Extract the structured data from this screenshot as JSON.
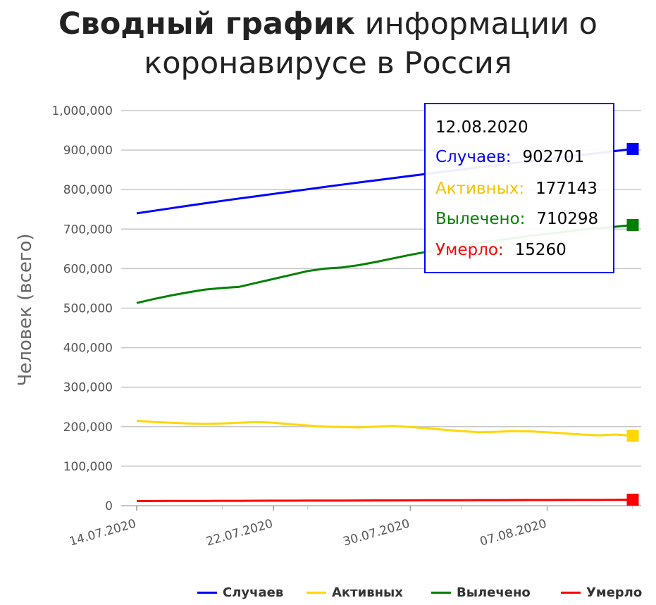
{
  "title": {
    "bold": "Сводный график",
    "rest": "информации о коронавирусе в Россия"
  },
  "colors": {
    "cases": "#0000ff",
    "active": "#ffd700",
    "recovered": "#008000",
    "deaths": "#ff0000",
    "grid": "#c8c8c8"
  },
  "tooltip": {
    "date": "12.08.2020",
    "rows": [
      {
        "label": "Случаев:",
        "value": "902701",
        "color": "#0000ff"
      },
      {
        "label": "Активных:",
        "value": "177143",
        "color": "#f2c200"
      },
      {
        "label": "Вылечено:",
        "value": "710298",
        "color": "#008000"
      },
      {
        "label": "Умерло:",
        "value": "15260",
        "color": "#ff0000"
      }
    ]
  },
  "legend": [
    {
      "label": "Случаев",
      "color": "#0000ff"
    },
    {
      "label": "Активных",
      "color": "#ffd700"
    },
    {
      "label": "Вылечено",
      "color": "#008000"
    },
    {
      "label": "Умерло",
      "color": "#ff0000"
    }
  ],
  "chart_data": {
    "type": "line",
    "title": "Сводный график информации о коронавирусе в Россия",
    "xlabel": "",
    "ylabel": "Человек (всего)",
    "ylim": [
      0,
      1000000
    ],
    "y_ticks": [
      0,
      100000,
      200000,
      300000,
      400000,
      500000,
      600000,
      700000,
      800000,
      900000,
      1000000
    ],
    "y_tick_labels": [
      "0",
      "100,000",
      "200,000",
      "300,000",
      "400,000",
      "500,000",
      "600,000",
      "700,000",
      "800,000",
      "900,000",
      "1,000,000"
    ],
    "x_ticks": [
      "14.07.2020",
      "22.07.2020",
      "30.07.2020",
      "07.08.2020"
    ],
    "x": [
      "14.07.2020",
      "15.07.2020",
      "16.07.2020",
      "17.07.2020",
      "18.07.2020",
      "19.07.2020",
      "20.07.2020",
      "21.07.2020",
      "22.07.2020",
      "23.07.2020",
      "24.07.2020",
      "25.07.2020",
      "26.07.2020",
      "27.07.2020",
      "28.07.2020",
      "29.07.2020",
      "30.07.2020",
      "31.07.2020",
      "01.08.2020",
      "02.08.2020",
      "03.08.2020",
      "04.08.2020",
      "05.08.2020",
      "06.08.2020",
      "07.08.2020",
      "08.08.2020",
      "09.08.2020",
      "10.08.2020",
      "11.08.2020",
      "12.08.2020"
    ],
    "grid": true,
    "legend_position": "bottom-right",
    "series": [
      {
        "name": "Случаев",
        "color": "#0000ff",
        "values": [
          739947,
          746369,
          752797,
          759203,
          765437,
          771546,
          777486,
          783328,
          789190,
          795038,
          800849,
          806720,
          812485,
          818120,
          823515,
          828990,
          834499,
          839981,
          845443,
          850870,
          856264,
          861423,
          866627,
          871894,
          877135,
          882347,
          887536,
          892654,
          897599,
          902701
        ]
      },
      {
        "name": "Активных",
        "color": "#ffd700",
        "values": [
          215000,
          212000,
          210000,
          208000,
          207000,
          208000,
          210000,
          212000,
          210000,
          206000,
          203000,
          200000,
          199000,
          198000,
          200000,
          202000,
          199000,
          196000,
          192000,
          189000,
          186000,
          187000,
          189000,
          188000,
          186000,
          183000,
          180000,
          178000,
          180000,
          177143
        ]
      },
      {
        "name": "Вылечено",
        "color": "#008000",
        "values": [
          513000,
          523000,
          532000,
          540000,
          547000,
          551000,
          554000,
          564000,
          574000,
          584000,
          594000,
          600000,
          603000,
          609000,
          617000,
          626000,
          635000,
          643000,
          651000,
          658000,
          665000,
          671000,
          677000,
          683000,
          688000,
          693000,
          698000,
          702000,
          706000,
          710298
        ]
      },
      {
        "name": "Умерло",
        "color": "#ff0000",
        "values": [
          11614,
          11739,
          11867,
          11992,
          12123,
          12246,
          12358,
          12472,
          12580,
          12697,
          12823,
          12946,
          13071,
          13192,
          13309,
          13428,
          13546,
          13673,
          13796,
          13918,
          14034,
          14153,
          14278,
          14401,
          14520,
          14635,
          14746,
          14859,
          14978,
          15260
        ]
      }
    ]
  }
}
